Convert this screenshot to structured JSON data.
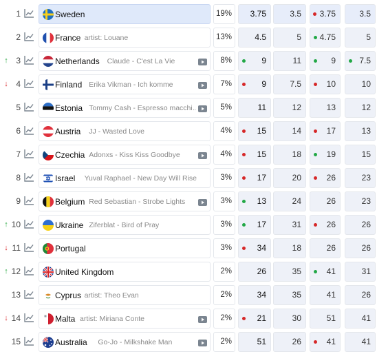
{
  "colors": {
    "up": "#2aa843",
    "down": "#d8262a",
    "selected_row": "#dfe9fa"
  },
  "rows": [
    {
      "rank": "1",
      "trend": "none",
      "country": "Sweden",
      "artist": "",
      "video": false,
      "share": "19%",
      "flag": "sweden",
      "cols": [
        {
          "v": "3.75",
          "dot": "none"
        },
        {
          "v": "3.5",
          "dot": "none"
        },
        {
          "v": "3.75",
          "dot": "red"
        },
        {
          "v": "3.5",
          "dot": "none"
        }
      ]
    },
    {
      "rank": "2",
      "trend": "none",
      "country": "France",
      "artist": "artist: Louane",
      "video": false,
      "share": "13%",
      "flag": "france",
      "cols": [
        {
          "v": "4.5",
          "dot": "none"
        },
        {
          "v": "5",
          "dot": "none"
        },
        {
          "v": "4.75",
          "dot": "green"
        },
        {
          "v": "5",
          "dot": "none"
        }
      ]
    },
    {
      "rank": "3",
      "trend": "up",
      "country": "Netherlands",
      "artist": "Claude - C'est La Vie",
      "video": true,
      "share": "8%",
      "flag": "netherlands",
      "cols": [
        {
          "v": "9",
          "dot": "green"
        },
        {
          "v": "11",
          "dot": "none"
        },
        {
          "v": "9",
          "dot": "green"
        },
        {
          "v": "7.5",
          "dot": "green"
        }
      ]
    },
    {
      "rank": "4",
      "trend": "down",
      "country": "Finland",
      "artist": "Erika Vikman - Ich komme",
      "video": true,
      "share": "7%",
      "flag": "finland",
      "cols": [
        {
          "v": "9",
          "dot": "red"
        },
        {
          "v": "7.5",
          "dot": "none"
        },
        {
          "v": "10",
          "dot": "red"
        },
        {
          "v": "10",
          "dot": "none"
        }
      ]
    },
    {
      "rank": "5",
      "trend": "none",
      "country": "Estonia",
      "artist": "Tommy Cash - Espresso macchi…",
      "video": true,
      "share": "5%",
      "flag": "estonia",
      "cols": [
        {
          "v": "11",
          "dot": "none"
        },
        {
          "v": "12",
          "dot": "none"
        },
        {
          "v": "13",
          "dot": "none"
        },
        {
          "v": "12",
          "dot": "none"
        }
      ]
    },
    {
      "rank": "6",
      "trend": "none",
      "country": "Austria",
      "artist": "JJ - Wasted Love",
      "video": false,
      "share": "4%",
      "flag": "austria",
      "cols": [
        {
          "v": "15",
          "dot": "red"
        },
        {
          "v": "14",
          "dot": "none"
        },
        {
          "v": "17",
          "dot": "red"
        },
        {
          "v": "13",
          "dot": "none"
        }
      ]
    },
    {
      "rank": "7",
      "trend": "none",
      "country": "Czechia",
      "artist": "Adonxs - Kiss Kiss Goodbye",
      "video": true,
      "share": "4%",
      "flag": "czechia",
      "cols": [
        {
          "v": "15",
          "dot": "red"
        },
        {
          "v": "18",
          "dot": "none"
        },
        {
          "v": "19",
          "dot": "green"
        },
        {
          "v": "15",
          "dot": "none"
        }
      ]
    },
    {
      "rank": "8",
      "trend": "none",
      "country": "Israel",
      "artist": "Yuval Raphael - New Day Will Rise",
      "video": false,
      "share": "3%",
      "flag": "israel",
      "cols": [
        {
          "v": "17",
          "dot": "red"
        },
        {
          "v": "20",
          "dot": "none"
        },
        {
          "v": "26",
          "dot": "red"
        },
        {
          "v": "23",
          "dot": "none"
        }
      ]
    },
    {
      "rank": "9",
      "trend": "none",
      "country": "Belgium",
      "artist": "Red Sebastian - Strobe Lights",
      "video": true,
      "share": "3%",
      "flag": "belgium",
      "cols": [
        {
          "v": "13",
          "dot": "green"
        },
        {
          "v": "24",
          "dot": "none"
        },
        {
          "v": "26",
          "dot": "none"
        },
        {
          "v": "23",
          "dot": "none"
        }
      ]
    },
    {
      "rank": "10",
      "trend": "up",
      "country": "Ukraine",
      "artist": "Ziferblat - Bird of Pray",
      "video": false,
      "share": "3%",
      "flag": "ukraine",
      "cols": [
        {
          "v": "17",
          "dot": "green"
        },
        {
          "v": "31",
          "dot": "none"
        },
        {
          "v": "26",
          "dot": "red"
        },
        {
          "v": "26",
          "dot": "none"
        }
      ]
    },
    {
      "rank": "11",
      "trend": "down",
      "country": "Portugal",
      "artist": "",
      "video": false,
      "share": "3%",
      "flag": "portugal",
      "cols": [
        {
          "v": "34",
          "dot": "red"
        },
        {
          "v": "18",
          "dot": "none"
        },
        {
          "v": "26",
          "dot": "none"
        },
        {
          "v": "26",
          "dot": "none"
        }
      ]
    },
    {
      "rank": "12",
      "trend": "up",
      "country": "United Kingdom",
      "artist": "",
      "video": false,
      "share": "2%",
      "flag": "uk",
      "cols": [
        {
          "v": "26",
          "dot": "none"
        },
        {
          "v": "35",
          "dot": "none"
        },
        {
          "v": "41",
          "dot": "green"
        },
        {
          "v": "31",
          "dot": "none"
        }
      ]
    },
    {
      "rank": "13",
      "trend": "none",
      "country": "Cyprus",
      "artist": "artist: Theo Evan",
      "video": false,
      "share": "2%",
      "flag": "cyprus",
      "cols": [
        {
          "v": "34",
          "dot": "none"
        },
        {
          "v": "35",
          "dot": "none"
        },
        {
          "v": "41",
          "dot": "none"
        },
        {
          "v": "26",
          "dot": "none"
        }
      ]
    },
    {
      "rank": "14",
      "trend": "down",
      "country": "Malta",
      "artist": "artist: Miriana Conte",
      "video": true,
      "share": "2%",
      "flag": "malta",
      "cols": [
        {
          "v": "21",
          "dot": "red"
        },
        {
          "v": "30",
          "dot": "none"
        },
        {
          "v": "51",
          "dot": "none"
        },
        {
          "v": "41",
          "dot": "none"
        }
      ]
    },
    {
      "rank": "15",
      "trend": "none",
      "country": "Australia",
      "artist": "Go-Jo - Milkshake Man",
      "video": true,
      "share": "2%",
      "flag": "australia",
      "cols": [
        {
          "v": "51",
          "dot": "none"
        },
        {
          "v": "26",
          "dot": "none"
        },
        {
          "v": "41",
          "dot": "red"
        },
        {
          "v": "41",
          "dot": "none"
        }
      ]
    }
  ]
}
